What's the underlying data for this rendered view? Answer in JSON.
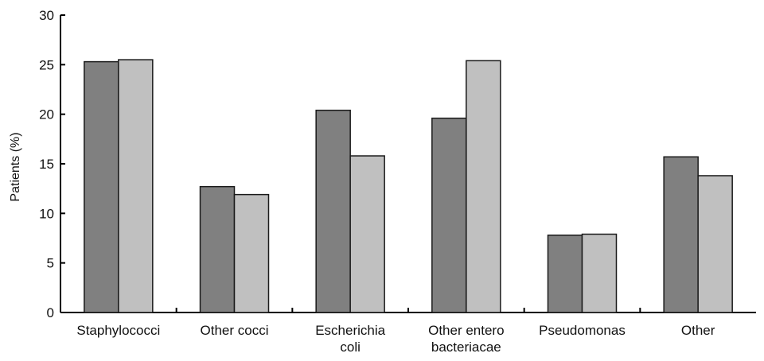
{
  "chart_data": {
    "type": "bar",
    "ylabel": "Patients (%)",
    "ylim": [
      0,
      30
    ],
    "yticks": [
      0,
      5,
      10,
      15,
      20,
      25,
      30
    ],
    "categories": [
      [
        "Staphylococci"
      ],
      [
        "Other cocci"
      ],
      [
        "Escherichia",
        "coli"
      ],
      [
        "Other entero",
        "bacteriacae"
      ],
      [
        "Pseudomonas"
      ],
      [
        "Other"
      ]
    ],
    "series": [
      {
        "values": [
          25.3,
          12.7,
          20.4,
          19.6,
          7.8,
          15.7
        ],
        "color": "#808080"
      },
      {
        "values": [
          25.5,
          11.9,
          15.8,
          25.4,
          7.9,
          13.8
        ],
        "color": "#c0c0c0"
      }
    ],
    "grid": false
  }
}
